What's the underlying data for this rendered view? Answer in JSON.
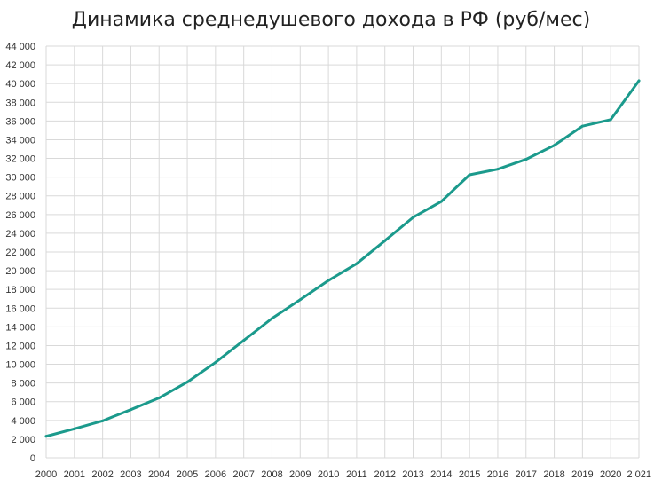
{
  "chart_data": {
    "type": "line",
    "title": "Динамика среднедушевого дохода в РФ (руб/мес)",
    "xlabel": "",
    "ylabel": "",
    "ylim": [
      0,
      44000
    ],
    "y_tick_labels": [
      "0",
      "2 000",
      "4 000",
      "6 000",
      "8 000",
      "10 000",
      "12 000",
      "14 000",
      "16 000",
      "18 000",
      "20 000",
      "22 000",
      "24 000",
      "26 000",
      "28 000",
      "30 000",
      "32 000",
      "34 000",
      "36 000",
      "38 000",
      "40 000",
      "42 000",
      "44 000"
    ],
    "categories": [
      "2000",
      "2001",
      "2002",
      "2003",
      "2004",
      "2005",
      "2006",
      "2007",
      "2008",
      "2009",
      "2010",
      "2011",
      "2012",
      "2013",
      "2014",
      "2015",
      "2016",
      "2017",
      "2018",
      "2019",
      "2020",
      "2 021"
    ],
    "series": [
      {
        "values": [
          2300,
          3100,
          3950,
          5150,
          6400,
          8100,
          10200,
          12550,
          14900,
          16900,
          18950,
          20750,
          23200,
          25700,
          27400,
          30250,
          30850,
          31900,
          33400,
          35450,
          36150,
          40300
        ]
      }
    ],
    "grid": true,
    "legend": "none",
    "line_color": "#1b9a8c"
  }
}
